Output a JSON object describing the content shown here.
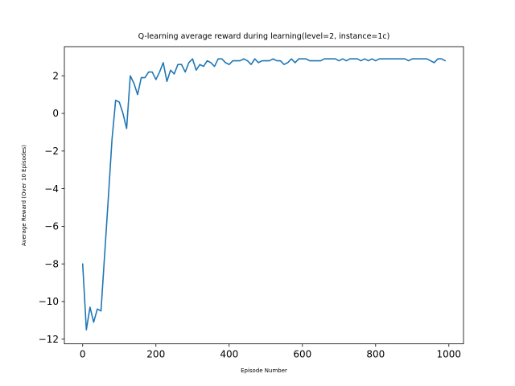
{
  "chart_data": {
    "type": "line",
    "title": "Q-learning average reward during learning(level=2, instance=1c)",
    "xlabel": "Episode Number",
    "ylabel": "Average Reward (Over 10 Episodes)",
    "xlim": [
      -50,
      1040
    ],
    "ylim": [
      -12.25,
      3.55
    ],
    "xticks": [
      0,
      200,
      400,
      600,
      800,
      1000
    ],
    "yticks": [
      -12,
      -10,
      -8,
      -6,
      -4,
      -2,
      0,
      2
    ],
    "grid": false,
    "color": "#1f77b4",
    "series": [
      {
        "x": [
          0,
          10,
          20,
          30,
          40,
          50,
          60,
          70,
          80,
          90,
          100,
          110,
          120,
          130,
          140,
          150,
          160,
          170,
          180,
          190,
          200,
          210,
          220,
          230,
          240,
          250,
          260,
          270,
          280,
          290,
          300,
          310,
          320,
          330,
          340,
          350,
          360,
          370,
          380,
          390,
          400,
          410,
          420,
          430,
          440,
          450,
          460,
          470,
          480,
          490,
          500,
          510,
          520,
          530,
          540,
          550,
          560,
          570,
          580,
          590,
          600,
          610,
          620,
          630,
          640,
          650,
          660,
          670,
          680,
          690,
          700,
          710,
          720,
          730,
          740,
          750,
          760,
          770,
          780,
          790,
          800,
          810,
          820,
          830,
          840,
          850,
          860,
          870,
          880,
          890,
          900,
          910,
          920,
          930,
          940,
          950,
          960,
          970,
          980,
          990
        ],
        "y": [
          -8.0,
          -11.5,
          -10.3,
          -11.1,
          -10.4,
          -10.5,
          -7.5,
          -4.5,
          -1.4,
          0.7,
          0.6,
          0.0,
          -0.8,
          2.0,
          1.6,
          1.0,
          1.9,
          1.9,
          2.2,
          2.2,
          1.8,
          2.2,
          2.7,
          1.7,
          2.3,
          2.1,
          2.6,
          2.6,
          2.2,
          2.7,
          2.9,
          2.3,
          2.6,
          2.5,
          2.8,
          2.7,
          2.5,
          2.9,
          2.9,
          2.7,
          2.6,
          2.8,
          2.8,
          2.8,
          2.9,
          2.8,
          2.6,
          2.9,
          2.7,
          2.8,
          2.8,
          2.8,
          2.9,
          2.8,
          2.8,
          2.6,
          2.7,
          2.9,
          2.7,
          2.9,
          2.9,
          2.9,
          2.8,
          2.8,
          2.8,
          2.8,
          2.9,
          2.9,
          2.9,
          2.9,
          2.8,
          2.9,
          2.8,
          2.9,
          2.9,
          2.9,
          2.8,
          2.9,
          2.8,
          2.9,
          2.8,
          2.9,
          2.9,
          2.9,
          2.9,
          2.9,
          2.9,
          2.9,
          2.9,
          2.8,
          2.9,
          2.9,
          2.9,
          2.9,
          2.9,
          2.8,
          2.7,
          2.9,
          2.9,
          2.8
        ]
      }
    ]
  }
}
